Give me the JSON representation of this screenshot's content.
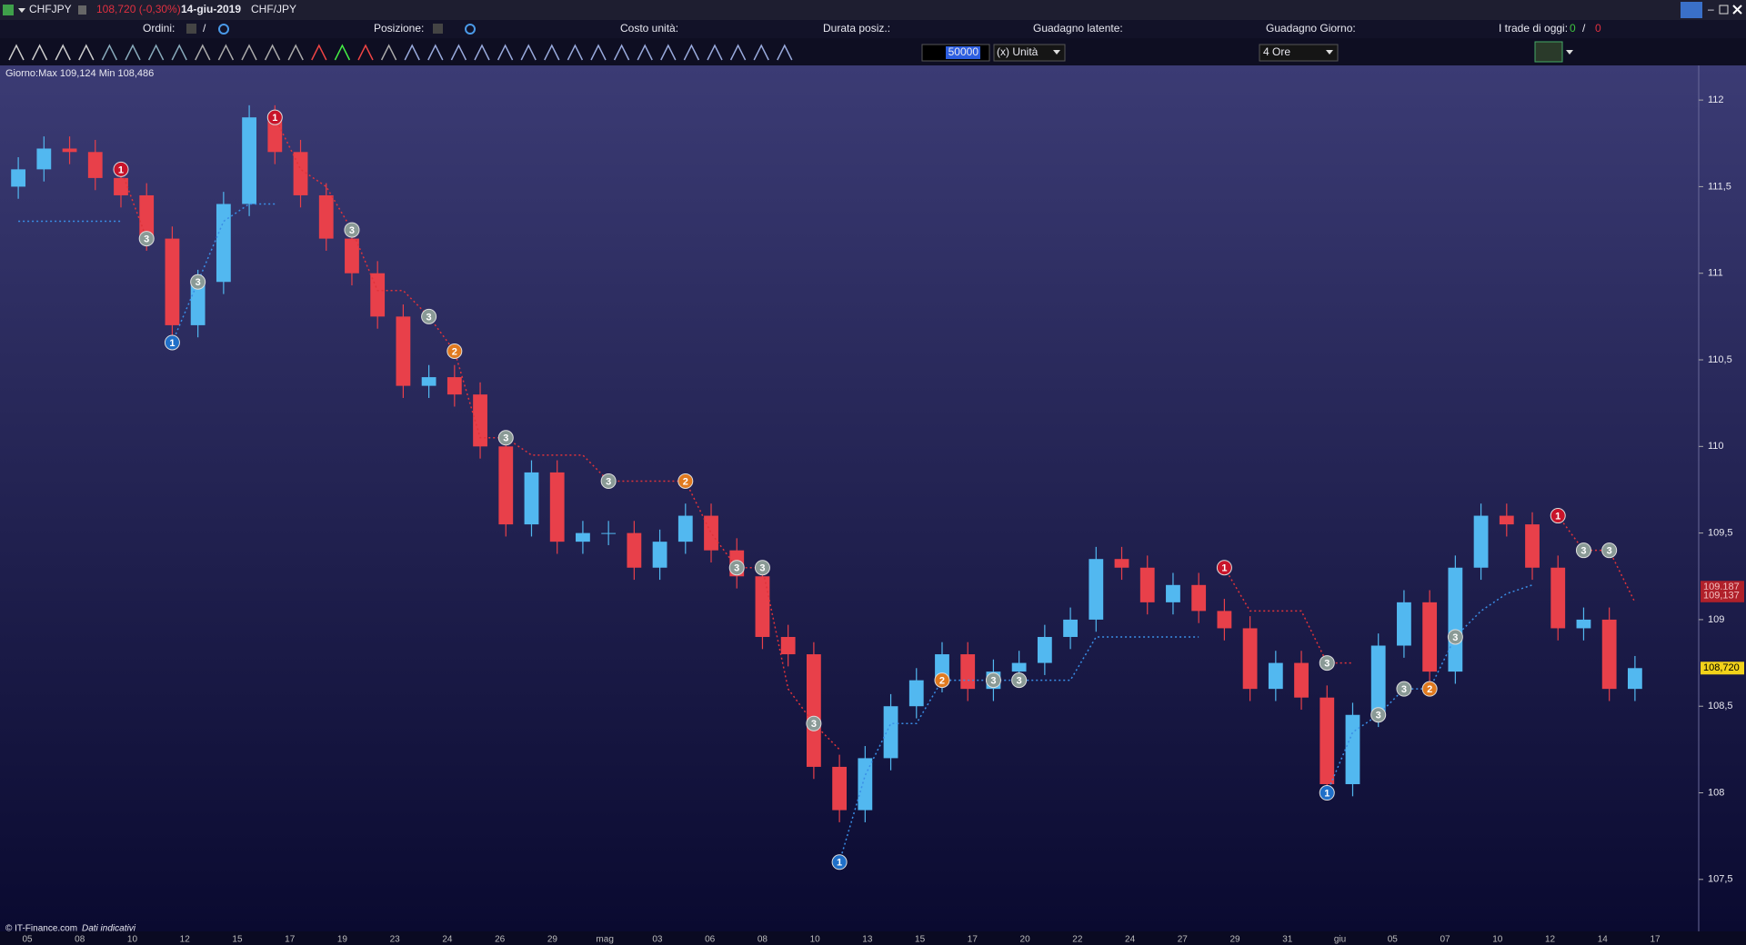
{
  "window": {
    "symbol": "CHFJPY",
    "quote": "108,720 (-0,30%)",
    "date": "14-giu-2019",
    "pair": "CHF/JPY"
  },
  "header": {
    "orders": "Ordini:",
    "orders_sep": "/",
    "position": "Posizione:",
    "unit_cost": "Costo unità:",
    "duration": "Durata posiz.:",
    "latent_gain": "Guadagno latente:",
    "day_gain": "Guadagno Giorno:",
    "trades_today": "I trade di oggi:",
    "trades_won": "0",
    "trades_sep": "/",
    "trades_lost": "0"
  },
  "toolbar": {
    "quantity": "50000",
    "unit": "(x) Unità",
    "timeframe": "4 Ore"
  },
  "chart_data": {
    "type": "candlestick",
    "info": "Giorno:Max 109,124 Min 108,486",
    "up_color": "#52b8f0",
    "down_color": "#e8404a",
    "xlabels": [
      "05",
      "08",
      "10",
      "12",
      "15",
      "17",
      "19",
      "23",
      "24",
      "26",
      "29",
      "mag",
      "03",
      "06",
      "08",
      "10",
      "13",
      "15",
      "17",
      "20",
      "22",
      "24",
      "27",
      "29",
      "31",
      "giu",
      "05",
      "07",
      "10",
      "12",
      "14",
      "17"
    ],
    "ylim": [
      107.2,
      112.2
    ],
    "yticks": [
      {
        "value": 107.5,
        "label": "107,5"
      },
      108,
      {
        "value": 108.5,
        "label": "108,5"
      },
      109,
      {
        "value": 109.5,
        "label": "109,5"
      },
      110,
      {
        "value": 110.5,
        "label": "110,5"
      },
      111,
      {
        "value": 111.5,
        "label": "111,5"
      },
      112
    ],
    "open": [
      111.5,
      111.6,
      111.72,
      111.7,
      111.55,
      111.45,
      111.2,
      110.7,
      110.95,
      111.4,
      111.9,
      111.7,
      111.45,
      111.2,
      111.0,
      110.75,
      110.35,
      110.4,
      110.3,
      110.0,
      109.55,
      109.85,
      109.45,
      109.5,
      109.5,
      109.3,
      109.45,
      109.6,
      109.4,
      109.25,
      108.9,
      108.8,
      108.15,
      107.9,
      108.2,
      108.5,
      108.65,
      108.8,
      108.6,
      108.7,
      108.75,
      108.9,
      109.0,
      109.35,
      109.3,
      109.1,
      109.2,
      109.05,
      108.95,
      108.6,
      108.75,
      108.55,
      108.05,
      108.45,
      108.85,
      109.1,
      108.7,
      109.3,
      109.6,
      109.55,
      109.3,
      108.95,
      109.0,
      108.6
    ],
    "high": [
      111.67,
      111.79,
      111.79,
      111.77,
      111.62,
      111.52,
      111.27,
      111.02,
      111.47,
      111.97,
      111.97,
      111.77,
      111.52,
      111.27,
      111.07,
      110.82,
      110.47,
      110.47,
      110.37,
      110.07,
      109.92,
      109.92,
      109.57,
      109.57,
      109.57,
      109.52,
      109.67,
      109.67,
      109.47,
      109.32,
      108.97,
      108.87,
      108.22,
      108.27,
      108.57,
      108.72,
      108.87,
      108.87,
      108.77,
      108.82,
      108.97,
      109.07,
      109.42,
      109.42,
      109.37,
      109.27,
      109.27,
      109.12,
      109.02,
      108.82,
      108.82,
      108.62,
      108.52,
      108.92,
      109.17,
      109.17,
      109.37,
      109.67,
      109.67,
      109.62,
      109.37,
      109.07,
      109.07,
      108.79
    ],
    "low": [
      111.43,
      111.53,
      111.63,
      111.48,
      111.38,
      111.13,
      110.63,
      110.63,
      110.88,
      111.33,
      111.63,
      111.38,
      111.13,
      110.93,
      110.68,
      110.28,
      110.28,
      110.23,
      109.93,
      109.48,
      109.48,
      109.38,
      109.38,
      109.43,
      109.23,
      109.23,
      109.38,
      109.33,
      109.18,
      108.83,
      108.73,
      108.08,
      107.83,
      107.83,
      108.13,
      108.43,
      108.58,
      108.53,
      108.53,
      108.63,
      108.68,
      108.83,
      108.93,
      109.23,
      109.03,
      109.03,
      108.98,
      108.88,
      108.53,
      108.53,
      108.48,
      107.98,
      107.98,
      108.38,
      108.78,
      108.63,
      108.63,
      109.23,
      109.48,
      109.23,
      108.88,
      108.88,
      108.53,
      108.53
    ],
    "close": [
      111.6,
      111.72,
      111.7,
      111.55,
      111.45,
      111.2,
      110.7,
      110.95,
      111.4,
      111.9,
      111.7,
      111.45,
      111.2,
      111.0,
      110.75,
      110.35,
      110.4,
      110.3,
      110.0,
      109.55,
      109.85,
      109.45,
      109.5,
      109.5,
      109.3,
      109.45,
      109.6,
      109.4,
      109.25,
      108.9,
      108.8,
      108.15,
      107.9,
      108.2,
      108.5,
      108.65,
      108.8,
      108.6,
      108.7,
      108.75,
      108.9,
      109.0,
      109.35,
      109.3,
      109.1,
      109.2,
      109.05,
      108.95,
      108.6,
      108.75,
      108.55,
      108.05,
      108.45,
      108.85,
      109.1,
      108.7,
      109.3,
      109.6,
      109.55,
      109.3,
      108.95,
      109.0,
      108.6,
      108.72
    ],
    "stops": [
      {
        "color": "#e0333a",
        "marker_colors": {
          "1": "#c8142a",
          "2": "#e07a1f",
          "3": "#8a9a96"
        },
        "values": [
          null,
          null,
          null,
          null,
          111.6,
          111.2,
          null,
          null,
          null,
          null,
          111.9,
          111.6,
          111.5,
          111.25,
          110.9,
          110.9,
          110.75,
          110.55,
          110.05,
          110.05,
          109.95,
          109.95,
          109.95,
          109.8,
          109.8,
          109.8,
          109.8,
          109.5,
          109.3,
          109.3,
          108.6,
          108.4,
          108.25,
          null,
          null,
          null,
          null,
          null,
          null,
          null,
          null,
          null,
          null,
          null,
          null,
          null,
          null,
          109.3,
          109.05,
          109.05,
          109.05,
          108.75,
          108.75,
          null,
          null,
          null,
          null,
          null,
          null,
          null,
          109.6,
          109.4,
          109.4,
          109.1
        ],
        "markers": [
          null,
          null,
          null,
          null,
          "1",
          "3",
          null,
          null,
          null,
          null,
          "1",
          null,
          null,
          "3",
          null,
          null,
          "3",
          "2",
          null,
          "3",
          null,
          null,
          null,
          "3",
          null,
          null,
          "2",
          null,
          "3",
          "3",
          null,
          "3",
          null,
          null,
          null,
          null,
          null,
          null,
          null,
          null,
          null,
          null,
          null,
          null,
          null,
          null,
          null,
          "1",
          null,
          null,
          null,
          "3",
          null,
          null,
          null,
          null,
          null,
          null,
          null,
          null,
          "1",
          "3",
          "3",
          null
        ]
      },
      {
        "color": "#3a8ee6",
        "marker_colors": {
          "1": "#1f6fc8",
          "2": "#e07a1f",
          "3": "#8a9a96"
        },
        "values": [
          111.3,
          111.3,
          111.3,
          111.3,
          111.3,
          null,
          110.6,
          110.95,
          111.3,
          111.4,
          111.4,
          null,
          null,
          null,
          null,
          null,
          null,
          null,
          null,
          null,
          null,
          null,
          null,
          null,
          null,
          null,
          null,
          null,
          null,
          null,
          null,
          null,
          107.6,
          108.1,
          108.4,
          108.4,
          108.65,
          108.65,
          108.65,
          108.65,
          108.65,
          108.65,
          108.9,
          108.9,
          108.9,
          108.9,
          108.9,
          null,
          null,
          null,
          null,
          108.0,
          108.35,
          108.45,
          108.6,
          108.6,
          108.9,
          109.05,
          109.15,
          109.2,
          null,
          null,
          null,
          null
        ],
        "markers": [
          null,
          null,
          null,
          null,
          null,
          null,
          "1",
          "3",
          null,
          null,
          null,
          null,
          null,
          null,
          null,
          null,
          null,
          null,
          null,
          null,
          null,
          null,
          null,
          null,
          null,
          null,
          null,
          null,
          null,
          null,
          null,
          null,
          "1",
          null,
          null,
          null,
          "2",
          null,
          "3",
          "3",
          null,
          null,
          null,
          null,
          null,
          null,
          null,
          null,
          null,
          null,
          null,
          "1",
          null,
          "3",
          "3",
          "2",
          "3",
          null,
          null,
          null,
          null,
          null,
          null,
          null
        ]
      }
    ],
    "price_labels": [
      {
        "value": 109.187,
        "label": "109,187",
        "color": "#b0202a"
      },
      {
        "value": 109.137,
        "label": "109,137",
        "color": "#b0202a"
      },
      {
        "value": 108.72,
        "label": "108,720",
        "color": "#f2d21a"
      }
    ]
  },
  "footer": {
    "copyright": "© IT-Finance.com",
    "note": "Dati indicativi"
  }
}
